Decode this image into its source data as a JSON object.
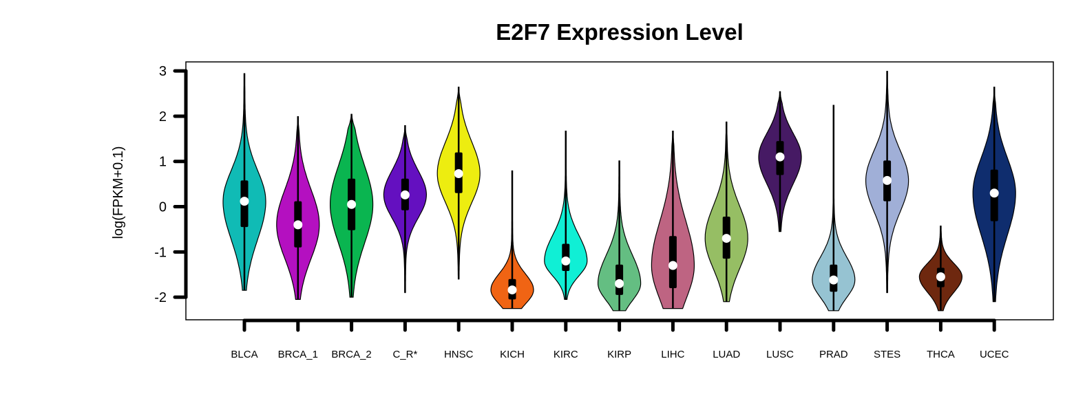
{
  "chart_data": {
    "type": "violin",
    "title": "E2F7 Expression Level",
    "ylabel": "log(FPKM+0.1)",
    "xlabel": "",
    "ylim": [
      -2.5,
      3.2
    ],
    "yticks": [
      -2,
      -1,
      0,
      1,
      2,
      3
    ],
    "ytick_labels": [
      "-2",
      "-1",
      "0",
      "1",
      "2",
      "3"
    ],
    "categories": [
      "BLCA",
      "BRCA_1",
      "BRCA_2",
      "C_R*",
      "HNSC",
      "KICH",
      "KIRC",
      "KIRP",
      "LIHC",
      "LUAD",
      "LUSC",
      "PRAD",
      "STES",
      "THCA",
      "UCEC"
    ],
    "colors": [
      "#10BBB5",
      "#B410C0",
      "#0AB550",
      "#6410C0",
      "#EDED10",
      "#F06414",
      "#10EFD5",
      "#64BE82",
      "#BE6482",
      "#96BE64",
      "#461A64",
      "#96C3D2",
      "#A0AFD7",
      "#6E280F",
      "#0F2D6E"
    ],
    "series": [
      {
        "median": 0.12,
        "q1": -0.45,
        "q3": 0.58,
        "min": -1.85,
        "max": 2.95
      },
      {
        "median": -0.4,
        "q1": -0.9,
        "q3": 0.12,
        "min": -2.05,
        "max": 2.0
      },
      {
        "median": 0.05,
        "q1": -0.52,
        "q3": 0.62,
        "min": -2.0,
        "max": 2.05
      },
      {
        "median": 0.26,
        "q1": -0.08,
        "q3": 0.62,
        "min": -1.9,
        "max": 1.8
      },
      {
        "median": 0.73,
        "q1": 0.3,
        "q3": 1.2,
        "min": -1.6,
        "max": 2.65
      },
      {
        "median": -1.84,
        "q1": -2.05,
        "q3": -1.6,
        "min": -2.25,
        "max": 0.8
      },
      {
        "median": -1.2,
        "q1": -1.42,
        "q3": -0.82,
        "min": -2.05,
        "max": 1.68
      },
      {
        "median": -1.7,
        "q1": -1.95,
        "q3": -1.28,
        "min": -2.3,
        "max": 1.02
      },
      {
        "median": -1.3,
        "q1": -1.8,
        "q3": -0.65,
        "min": -2.25,
        "max": 1.68
      },
      {
        "median": -0.7,
        "q1": -1.15,
        "q3": -0.22,
        "min": -2.1,
        "max": 1.88
      },
      {
        "median": 1.1,
        "q1": 0.7,
        "q3": 1.45,
        "min": -0.55,
        "max": 2.55
      },
      {
        "median": -1.62,
        "q1": -1.88,
        "q3": -1.28,
        "min": -2.3,
        "max": 2.25
      },
      {
        "median": 0.58,
        "q1": 0.12,
        "q3": 1.02,
        "min": -1.9,
        "max": 3.0
      },
      {
        "median": -1.55,
        "q1": -1.78,
        "q3": -1.35,
        "min": -2.3,
        "max": -0.42
      },
      {
        "median": 0.3,
        "q1": -0.32,
        "q3": 0.82,
        "min": -2.1,
        "max": 2.65
      }
    ]
  }
}
